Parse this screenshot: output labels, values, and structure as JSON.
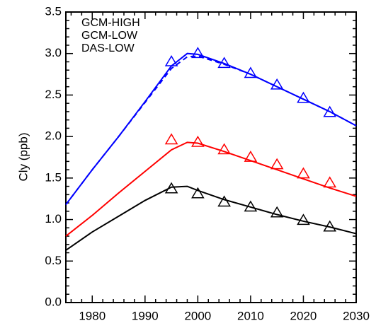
{
  "chart_data": {
    "type": "line",
    "y_label": "Cly (ppb)",
    "x": [
      1975,
      1980,
      1985,
      1990,
      1995,
      1998,
      2000,
      2005,
      2010,
      2015,
      2020,
      2025,
      2030
    ],
    "marker_x": [
      1995,
      2000,
      2005,
      2010,
      2015,
      2020,
      2025
    ],
    "series": [
      {
        "name": "GCM-HIGH",
        "color": "#0000ff",
        "values": [
          1.18,
          1.6,
          2.0,
          2.42,
          2.85,
          3.0,
          2.99,
          2.88,
          2.75,
          2.6,
          2.45,
          2.3,
          2.13
        ],
        "dashed_values": [
          1.18,
          1.6,
          2.0,
          2.41,
          2.82,
          2.96,
          2.97,
          2.87,
          2.75,
          2.6,
          2.45,
          2.3,
          2.13
        ],
        "marker_values": [
          2.9,
          3.0,
          2.88,
          2.76,
          2.62,
          2.46,
          2.29
        ]
      },
      {
        "name": "GCM-LOW",
        "color": "#ff0000",
        "values": [
          0.8,
          1.05,
          1.32,
          1.58,
          1.84,
          1.93,
          1.92,
          1.82,
          1.71,
          1.6,
          1.49,
          1.38,
          1.28
        ],
        "marker_values": [
          1.96,
          1.93,
          1.84,
          1.75,
          1.66,
          1.55,
          1.44
        ]
      },
      {
        "name": "DAS-LOW",
        "color": "#000000",
        "values": [
          0.63,
          0.85,
          1.04,
          1.23,
          1.39,
          1.4,
          1.35,
          1.24,
          1.15,
          1.06,
          0.98,
          0.91,
          0.83
        ],
        "marker_values": [
          1.37,
          1.31,
          1.21,
          1.15,
          1.08,
          0.99,
          0.91
        ]
      }
    ],
    "xlim": [
      1975,
      2030
    ],
    "xticks": [
      1980,
      1990,
      2000,
      2010,
      2020,
      2030
    ],
    "ylim": [
      0,
      3.5
    ],
    "yticks": [
      {
        "value": 0,
        "label": "0.0"
      },
      0.5,
      {
        "value": 1,
        "label": "1.0"
      },
      1.5,
      {
        "value": 2,
        "label": "2.0"
      },
      2.5,
      {
        "value": 3,
        "label": "3.0"
      },
      3.5
    ],
    "legend": "upper left",
    "grid": false
  }
}
